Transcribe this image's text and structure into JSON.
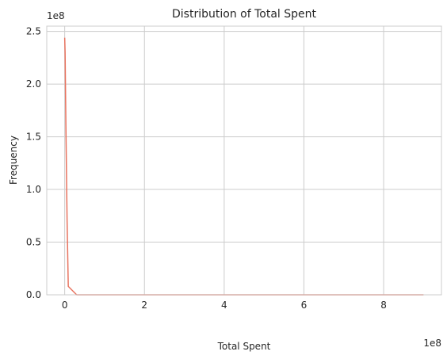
{
  "chart_data": {
    "type": "line",
    "title": "Distribution of Total Spent",
    "xlabel": "Total Spent",
    "ylabel": "Frequency",
    "x_offset_label": "1e8",
    "y_offset_label": "1e8",
    "xlim": [
      -0.45,
      9.45
    ],
    "ylim": [
      0,
      2.55
    ],
    "x_ticks": [
      0,
      2,
      4,
      6,
      8
    ],
    "x_tick_labels": [
      "0",
      "2",
      "4",
      "6",
      "8"
    ],
    "y_ticks": [
      0,
      0.5,
      1.0,
      1.5,
      2.0,
      2.5
    ],
    "y_tick_labels": [
      "0.0",
      "0.5",
      "1.0",
      "1.5",
      "2.0",
      "2.5"
    ],
    "grid": true,
    "series": [
      {
        "color": "#e8735f",
        "x": [
          0.0,
          0.01,
          0.03,
          0.06,
          0.09,
          0.3,
          1.0,
          3.0,
          5.0,
          7.0,
          9.0
        ],
        "y": [
          2.44,
          2.3,
          1.6,
          0.7,
          0.08,
          0.0,
          0.0,
          0.0,
          0.0,
          0.0,
          0.0
        ]
      }
    ]
  }
}
